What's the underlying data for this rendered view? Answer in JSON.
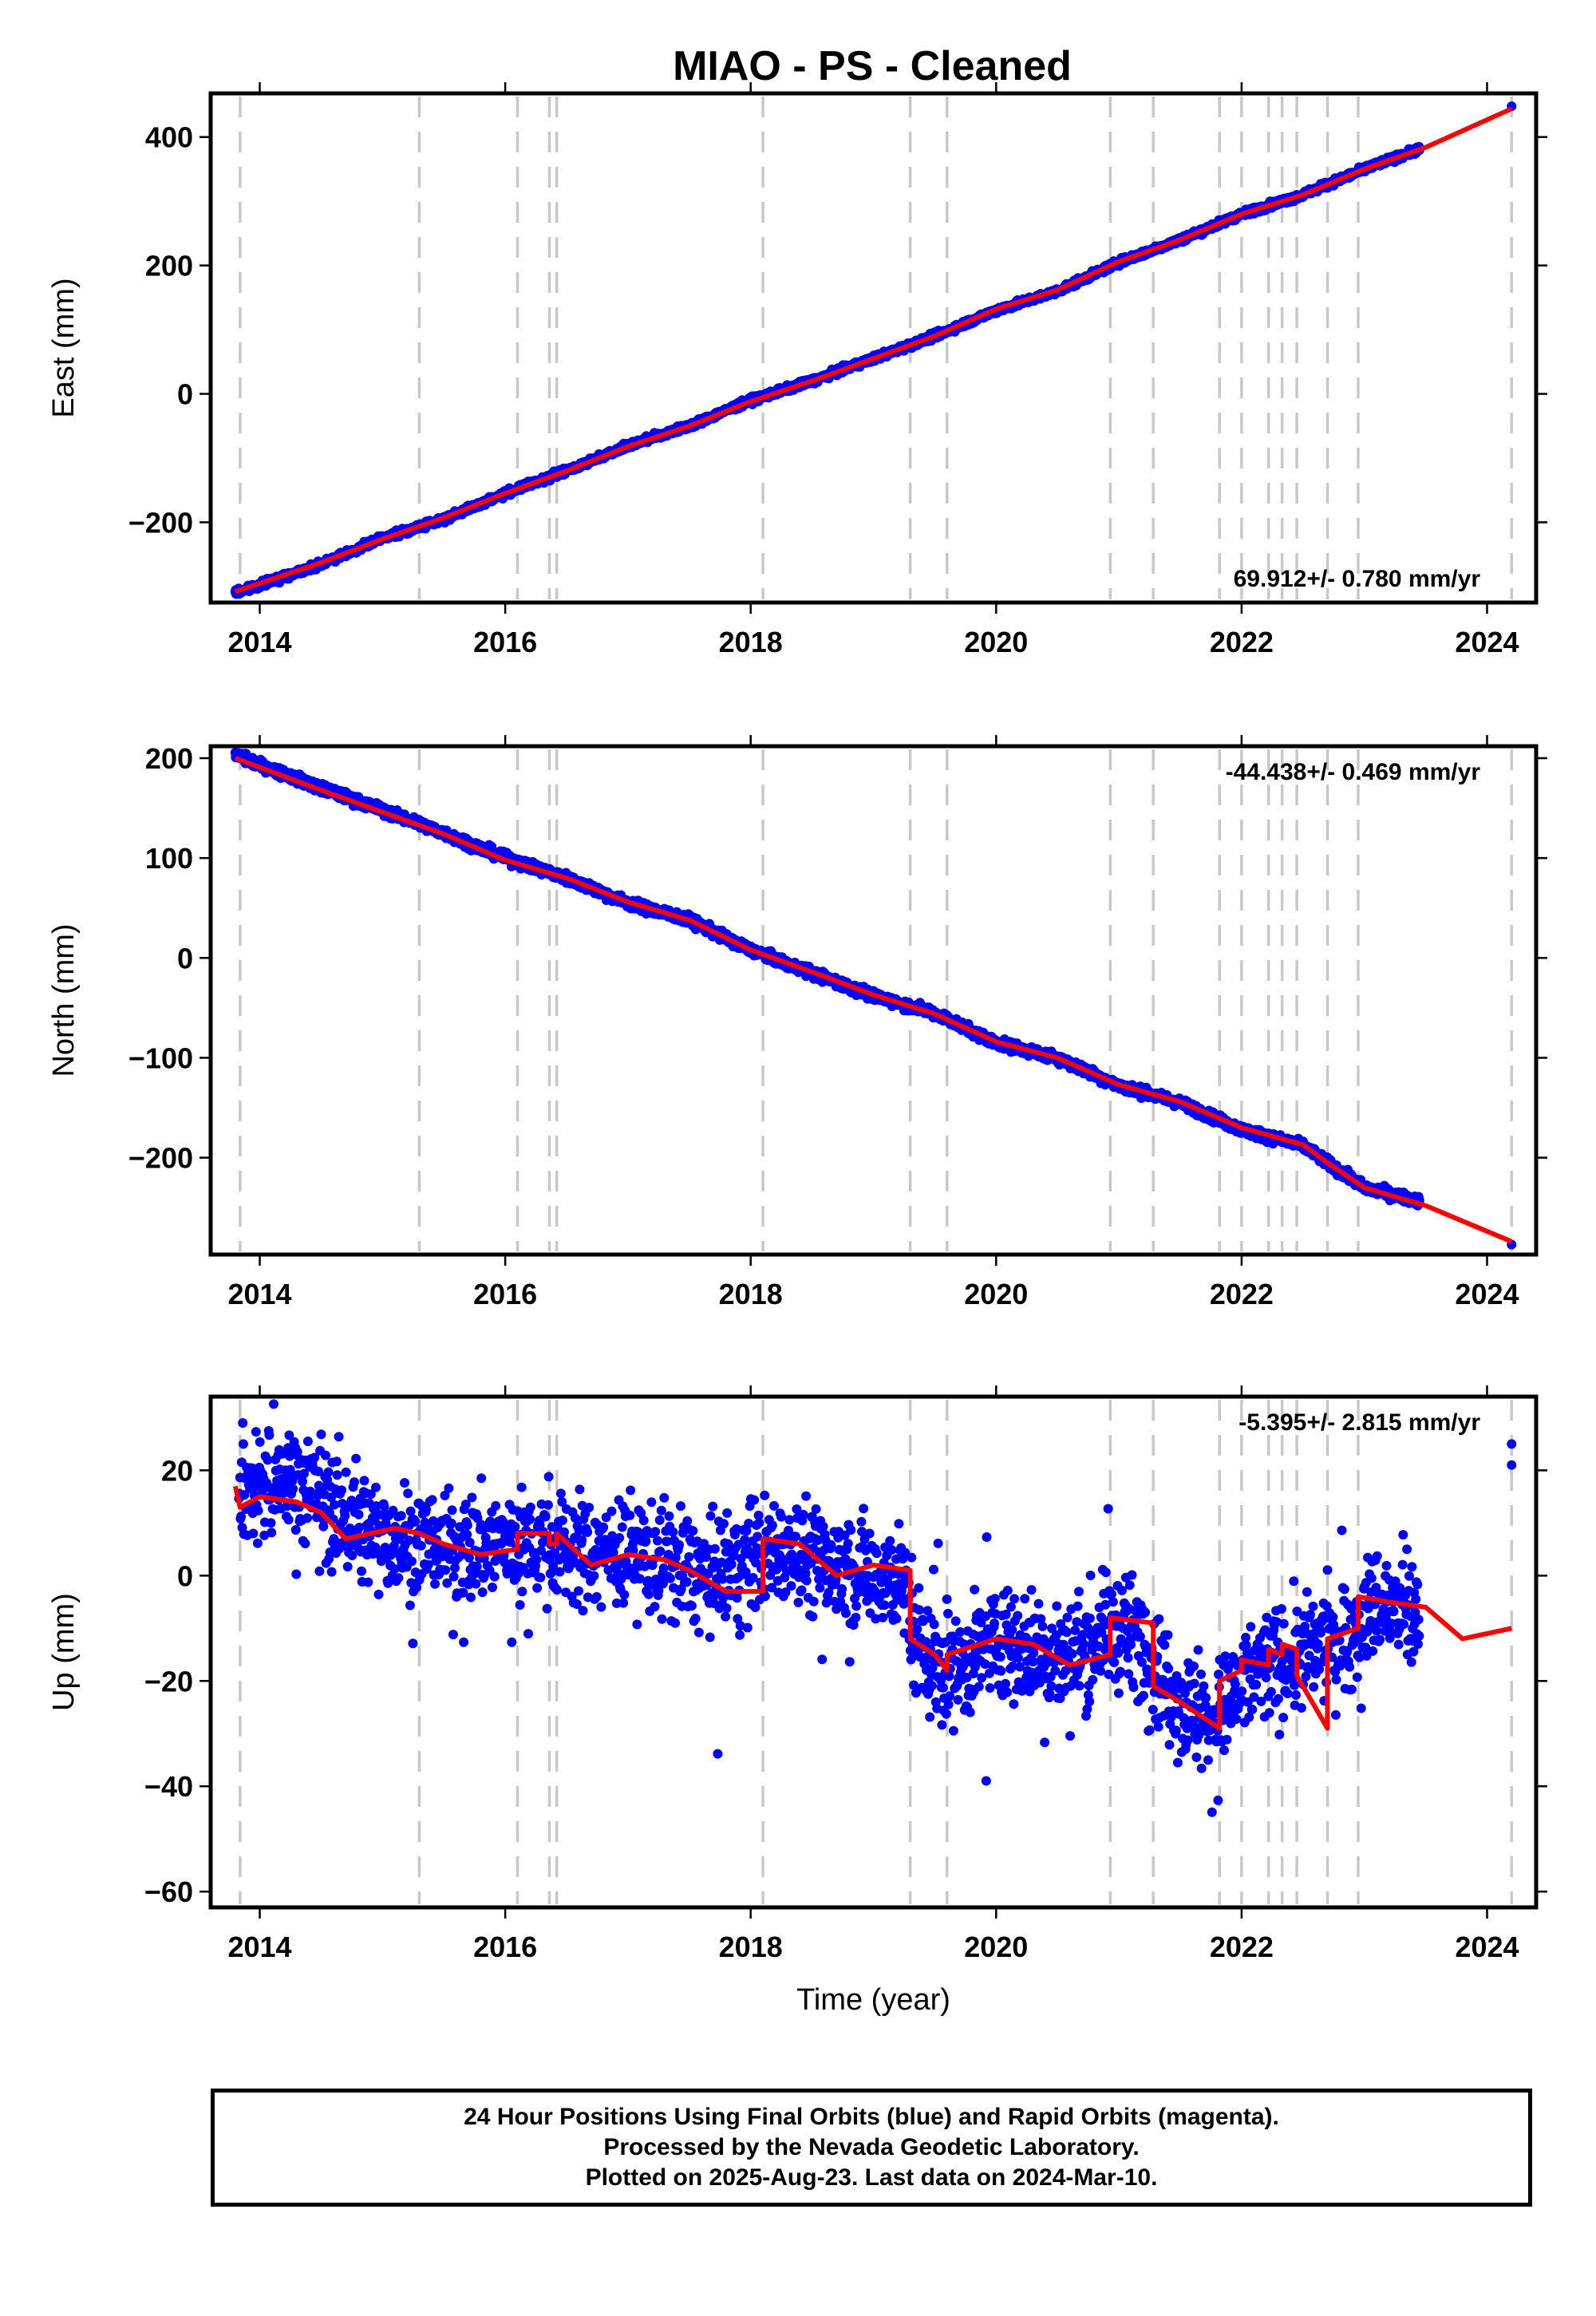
{
  "title": "MIAO  - PS - Cleaned",
  "footer": {
    "line1": "24 Hour Positions Using Final Orbits (blue) and Rapid Orbits (magenta).",
    "line2": "Processed by the Nevada Geodetic Laboratory.",
    "line3": "Plotted on 2025-Aug-23. Last data on 2024-Mar-10."
  },
  "colors": {
    "final_orbit_points": "#0000ff",
    "rapid_orbit_points": "#ff00ff",
    "model_fit": "#ff0000",
    "event_lines": "#c8c8c8"
  },
  "chart_data": [
    {
      "type": "scatter",
      "component": "east",
      "title": "MIAO  - PS - Cleaned",
      "xlabel": "",
      "ylabel": "East (mm)",
      "xlim": [
        2013.6,
        2024.4
      ],
      "ylim": [
        -325,
        468
      ],
      "xticks": [
        2014,
        2016,
        2018,
        2020,
        2022,
        2024
      ],
      "yticks": [
        -200,
        0,
        200,
        400
      ],
      "grid": false,
      "rate_text": "69.912+/- 0.780 mm/yr",
      "rate_position": "bottom-right",
      "event_lines": [
        2013.84,
        2015.3,
        2016.1,
        2016.36,
        2016.42,
        2018.1,
        2019.3,
        2019.6,
        2020.93,
        2021.28,
        2021.82,
        2022.0,
        2022.22,
        2022.33,
        2022.45,
        2022.7,
        2022.95,
        2024.2
      ],
      "series": [
        {
          "name": "",
          "kind": "points",
          "x": [
            2013.8,
            2014.5,
            2015.0,
            2015.5,
            2016.0,
            2016.5,
            2017.0,
            2017.5,
            2018.0,
            2018.5,
            2019.0,
            2019.5,
            2020.0,
            2020.5,
            2021.0,
            2021.5,
            2022.0,
            2022.5,
            2023.0,
            2023.5,
            2024.2
          ],
          "y": [
            -310,
            -265,
            -225,
            -195,
            -155,
            -120,
            -80,
            -50,
            -10,
            20,
            55,
            90,
            130,
            160,
            205,
            240,
            280,
            310,
            350,
            385,
            448
          ]
        },
        {
          "name": "",
          "kind": "fit",
          "x": [
            2013.8,
            2014.5,
            2015.0,
            2015.5,
            2016.0,
            2016.5,
            2017.0,
            2017.5,
            2018.0,
            2018.5,
            2019.0,
            2019.5,
            2020.0,
            2020.5,
            2021.0,
            2021.5,
            2022.0,
            2022.5,
            2023.0,
            2023.5,
            2024.2
          ],
          "y": [
            -308,
            -263,
            -226,
            -193,
            -155,
            -120,
            -82,
            -50,
            -12,
            20,
            55,
            90,
            132,
            162,
            206,
            240,
            280,
            310,
            350,
            384,
            444
          ]
        }
      ]
    },
    {
      "type": "scatter",
      "component": "north",
      "xlabel": "",
      "ylabel": "North (mm)",
      "xlim": [
        2013.6,
        2024.4
      ],
      "ylim": [
        -297,
        212
      ],
      "xticks": [
        2014,
        2016,
        2018,
        2020,
        2022,
        2024
      ],
      "yticks": [
        -200,
        -100,
        0,
        100,
        200
      ],
      "grid": false,
      "rate_text": "-44.438+/- 0.469 mm/yr",
      "rate_position": "top-right",
      "event_lines": [
        2013.84,
        2015.3,
        2016.1,
        2016.36,
        2016.42,
        2018.1,
        2019.3,
        2019.6,
        2020.93,
        2021.28,
        2021.82,
        2022.0,
        2022.22,
        2022.33,
        2022.45,
        2022.7,
        2022.95,
        2024.2
      ],
      "series": [
        {
          "name": "",
          "kind": "points",
          "x": [
            2013.8,
            2014.5,
            2015.0,
            2015.5,
            2016.0,
            2016.5,
            2017.0,
            2017.5,
            2018.0,
            2018.5,
            2019.0,
            2019.5,
            2020.0,
            2020.5,
            2021.0,
            2021.5,
            2022.0,
            2022.5,
            2022.7,
            2023.0,
            2023.5,
            2024.2
          ],
          "y": [
            203,
            170,
            148,
            125,
            100,
            80,
            55,
            38,
            8,
            -15,
            -38,
            -55,
            -85,
            -100,
            -128,
            -145,
            -172,
            -188,
            -205,
            -230,
            -245,
            -287
          ]
        },
        {
          "name": "",
          "kind": "fit",
          "x": [
            2013.8,
            2014.5,
            2015.0,
            2015.5,
            2016.0,
            2016.5,
            2017.0,
            2017.5,
            2018.0,
            2018.5,
            2019.0,
            2019.5,
            2020.0,
            2020.5,
            2021.0,
            2021.5,
            2022.0,
            2022.5,
            2022.7,
            2023.0,
            2023.5,
            2024.2
          ],
          "y": [
            200,
            168,
            146,
            124,
            98,
            80,
            56,
            38,
            8,
            -14,
            -37,
            -56,
            -84,
            -100,
            -127,
            -144,
            -170,
            -187,
            -205,
            -230,
            -248,
            -284
          ]
        }
      ]
    },
    {
      "type": "scatter",
      "component": "up",
      "xlabel": "Time (year)",
      "ylabel": "Up (mm)",
      "xlim": [
        2013.6,
        2024.4
      ],
      "ylim": [
        -63,
        34
      ],
      "xticks": [
        2014,
        2016,
        2018,
        2020,
        2022,
        2024
      ],
      "yticks": [
        -60,
        -40,
        -20,
        0,
        20
      ],
      "grid": false,
      "rate_text": "-5.395+/- 2.815 mm/yr",
      "rate_position": "top-right",
      "event_lines": [
        2013.84,
        2015.3,
        2016.1,
        2016.36,
        2016.42,
        2018.1,
        2019.3,
        2019.6,
        2020.93,
        2021.28,
        2021.82,
        2022.0,
        2022.22,
        2022.33,
        2022.45,
        2022.7,
        2022.95,
        2024.2
      ],
      "series": [
        {
          "name": "",
          "kind": "points",
          "x": [
            2013.83,
            2014.2,
            2014.5,
            2014.8,
            2015.2,
            2015.6,
            2016.0,
            2016.3,
            2016.6,
            2017.0,
            2017.4,
            2017.7,
            2018.0,
            2018.3,
            2018.6,
            2018.9,
            2019.2,
            2019.4,
            2019.7,
            2020.0,
            2020.3,
            2020.6,
            2020.9,
            2021.2,
            2021.5,
            2021.8,
            2022.1,
            2022.4,
            2022.8,
            2023.1,
            2023.4,
            2024.2
          ],
          "y": [
            17,
            18,
            15,
            9,
            7,
            5,
            6,
            7,
            4,
            5,
            2,
            -1,
            3,
            6,
            2,
            1,
            0,
            -15,
            -18,
            -12,
            -14,
            -16,
            -10,
            -12,
            -24,
            -28,
            -18,
            -16,
            -12,
            -5,
            -8,
            25
          ]
        },
        {
          "name": "",
          "kind": "fit",
          "x": [
            2013.8,
            2013.84,
            2014.0,
            2014.3,
            2014.5,
            2014.7,
            2014.9,
            2015.1,
            2015.3,
            2015.5,
            2015.8,
            2016.1,
            2016.1,
            2016.36,
            2016.36,
            2016.42,
            2016.42,
            2016.7,
            2017.0,
            2017.3,
            2017.5,
            2017.8,
            2018.1,
            2018.1,
            2018.4,
            2018.7,
            2019.0,
            2019.3,
            2019.3,
            2019.5,
            2019.6,
            2019.6,
            2020.0,
            2020.3,
            2020.6,
            2020.93,
            2020.93,
            2021.28,
            2021.28,
            2021.5,
            2021.82,
            2021.82,
            2022.0,
            2022.0,
            2022.22,
            2022.22,
            2022.33,
            2022.33,
            2022.45,
            2022.45,
            2022.7,
            2022.7,
            2022.95,
            2022.95,
            2023.2,
            2023.5,
            2023.8,
            2024.2
          ],
          "y": [
            17,
            13,
            15,
            14,
            12,
            7,
            8,
            9,
            8,
            6,
            4,
            5,
            8,
            8,
            6,
            6,
            8,
            2,
            4,
            3,
            1,
            -3,
            -3,
            7,
            6,
            0,
            2,
            1,
            -12,
            -15,
            -18,
            -15,
            -12,
            -13,
            -17,
            -15,
            -8,
            -9,
            -21,
            -24,
            -29,
            -20,
            -18,
            -16,
            -17,
            -14,
            -15,
            -13,
            -14,
            -19,
            -29,
            -12,
            -10,
            -4,
            -5,
            -6,
            -12,
            -10
          ]
        }
      ]
    }
  ]
}
